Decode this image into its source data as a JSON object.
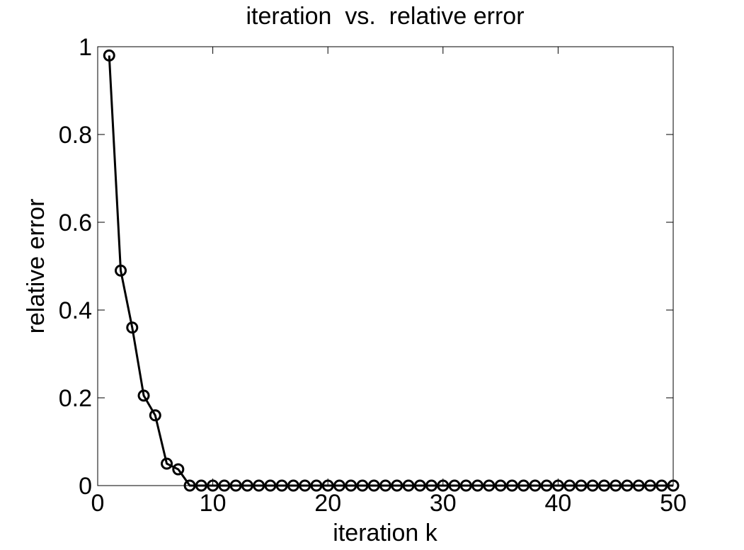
{
  "chart_data": {
    "type": "line",
    "title": "iteration  vs.  relative error",
    "x_label": "iteration k",
    "y_label": "relative error",
    "x": [
      1,
      2,
      3,
      4,
      5,
      6,
      7,
      8,
      9,
      10,
      11,
      12,
      13,
      14,
      15,
      16,
      17,
      18,
      19,
      20,
      21,
      22,
      23,
      24,
      25,
      26,
      27,
      28,
      29,
      30,
      31,
      32,
      33,
      34,
      35,
      36,
      37,
      38,
      39,
      40,
      41,
      42,
      43,
      44,
      45,
      46,
      47,
      48,
      49,
      50
    ],
    "series": [
      {
        "name": "relative error",
        "color": "#000000",
        "values": [
          0.98,
          0.49,
          0.36,
          0.205,
          0.16,
          0.05,
          0.037,
          0,
          0,
          0,
          0,
          0,
          0,
          0,
          0,
          0,
          0,
          0,
          0,
          0,
          0,
          0,
          0,
          0,
          0,
          0,
          0,
          0,
          0,
          0,
          0,
          0,
          0,
          0,
          0,
          0,
          0,
          0,
          0,
          0,
          0,
          0,
          0,
          0,
          0,
          0,
          0,
          0,
          0,
          0
        ]
      }
    ],
    "xlim": [
      0,
      50
    ],
    "xticks": [
      0,
      10,
      20,
      30,
      40,
      50
    ],
    "ylim": [
      0,
      1
    ],
    "yticks": [
      0,
      0.2,
      0.4,
      0.6,
      0.8,
      1
    ],
    "marker": "circle",
    "grid": false
  }
}
